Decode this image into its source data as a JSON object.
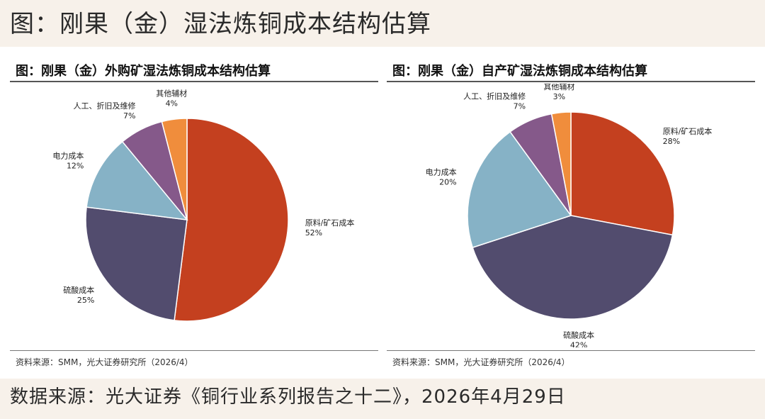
{
  "page": {
    "title": "图：刚果（金）湿法炼铜成本结构估算",
    "footer_source": "数据来源：光大证券《铜行业系列报告之十二》，2026年4月29日"
  },
  "chart_data": [
    {
      "type": "pie",
      "title": "图：刚果（金）外购矿湿法炼铜成本结构估算",
      "source_note": "资料来源：SMM，光大证券研究所（2026/4）",
      "slices": [
        {
          "label": "原料/矿石成本",
          "value": 52,
          "value_label": "52%",
          "color": "#c4401f"
        },
        {
          "label": "硫酸成本",
          "value": 25,
          "value_label": "25%",
          "color": "#524c6e"
        },
        {
          "label": "电力成本",
          "value": 12,
          "value_label": "12%",
          "color": "#86b2c6"
        },
        {
          "label": "人工、折旧及维修",
          "value": 7,
          "value_label": "7%",
          "color": "#85598a"
        },
        {
          "label": "其他辅材",
          "value": 4,
          "value_label": "4%",
          "color": "#f08d3c"
        }
      ]
    },
    {
      "type": "pie",
      "title": "图：刚果（金）自产矿湿法炼铜成本结构估算",
      "source_note": "资料来源：SMM，光大证券研究所（2026/4）",
      "slices": [
        {
          "label": "原料/矿石成本",
          "value": 28,
          "value_label": "28%",
          "color": "#c4401f"
        },
        {
          "label": "硫酸成本",
          "value": 42,
          "value_label": "42%",
          "color": "#524c6e"
        },
        {
          "label": "电力成本",
          "value": 20,
          "value_label": "20%",
          "color": "#86b2c6"
        },
        {
          "label": "人工、折旧及维修",
          "value": 7,
          "value_label": "7%",
          "color": "#85598a"
        },
        {
          "label": "其他辅材",
          "value": 3,
          "value_label": "3%",
          "color": "#f08d3c"
        }
      ]
    }
  ]
}
